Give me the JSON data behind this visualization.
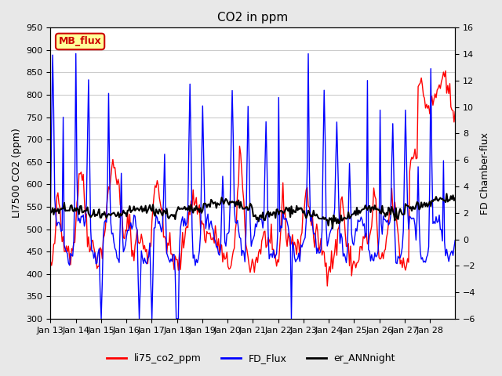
{
  "title": "CO2 in ppm",
  "ylabel_left": "LI7500 CO2 (ppm)",
  "ylabel_right": "FD Chamber-flux",
  "ylim_left": [
    300,
    950
  ],
  "ylim_right": [
    -6,
    16
  ],
  "yticks_left": [
    300,
    350,
    400,
    450,
    500,
    550,
    600,
    650,
    700,
    750,
    800,
    850,
    900,
    950
  ],
  "yticks_right": [
    -6,
    -4,
    -2,
    0,
    2,
    4,
    6,
    8,
    10,
    12,
    14,
    16
  ],
  "xticklabels": [
    "Jan 13",
    "Jan 14",
    "Jan 15",
    "Jan 16",
    "Jan 17",
    "Jan 18",
    "Jan 19",
    "Jan 20",
    "Jan 21",
    "Jan 22",
    "Jan 23",
    "Jan 24",
    "Jan 25",
    "Jan 26",
    "Jan 27",
    "Jan 28"
  ],
  "legend_labels": [
    "li75_co2_ppm",
    "FD_Flux",
    "er_ANNnight"
  ],
  "legend_colors": [
    "#ff0000",
    "#0000ff",
    "#000000"
  ],
  "color_co2": "#ff0000",
  "color_fd": "#0000ff",
  "color_ann": "#000000",
  "annotation_text": "MB_flux",
  "annotation_color": "#cc0000",
  "annotation_bg": "#ffff99",
  "background_color": "#e8e8e8",
  "plot_bg": "#ffffff",
  "linewidth_co2": 1.0,
  "linewidth_fd": 1.0,
  "linewidth_ann": 1.5
}
